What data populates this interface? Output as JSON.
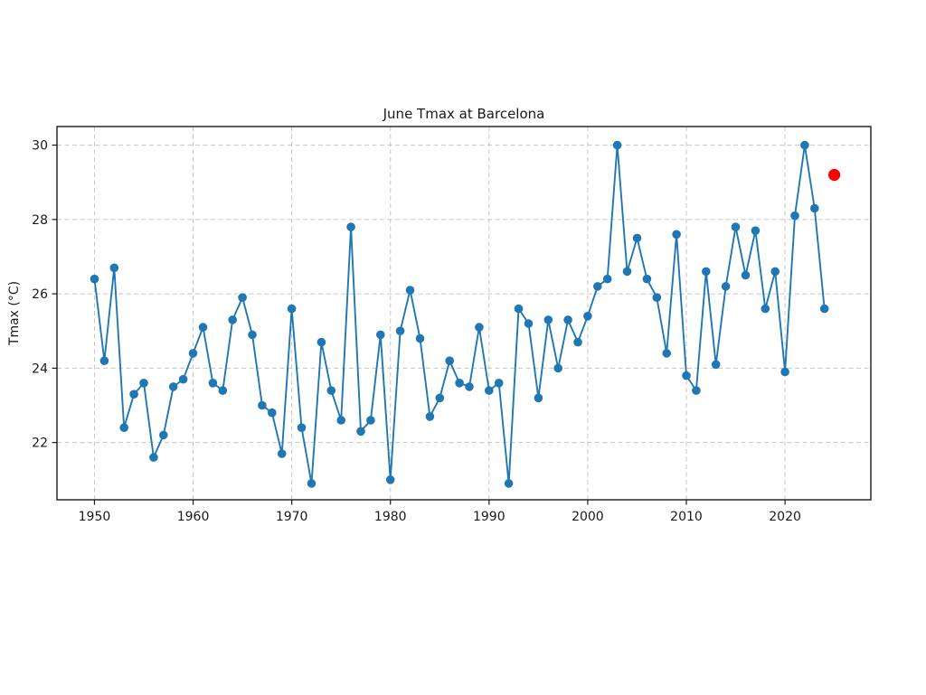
{
  "page": {
    "background": "#ffffff"
  },
  "chart_data": {
    "type": "line",
    "title": "June Tmax at Barcelona",
    "xlabel": "",
    "ylabel": "Tmax (°C)",
    "xlim": [
      1946.2,
      2028.7
    ],
    "ylim": [
      20.46,
      30.5
    ],
    "x_ticks": [
      1950,
      1960,
      1970,
      1980,
      1990,
      2000,
      2010,
      2020
    ],
    "y_ticks": [
      22,
      24,
      26,
      28,
      30
    ],
    "grid": true,
    "grid_style": "dashed",
    "legend_position": "none",
    "colors": {
      "axis": "#1a1a1a",
      "grid": "#c6c6c6",
      "background": "#ffffff"
    },
    "series": [
      {
        "name": "june-tmax-observed",
        "style": "line-with-markers",
        "color": "#1f77b4",
        "x": [
          1950,
          1951,
          1952,
          1953,
          1954,
          1955,
          1956,
          1957,
          1958,
          1959,
          1960,
          1961,
          1962,
          1963,
          1964,
          1965,
          1966,
          1967,
          1968,
          1969,
          1970,
          1971,
          1972,
          1973,
          1974,
          1975,
          1976,
          1977,
          1978,
          1979,
          1980,
          1981,
          1982,
          1983,
          1984,
          1985,
          1986,
          1987,
          1988,
          1989,
          1990,
          1991,
          1992,
          1993,
          1994,
          1995,
          1996,
          1997,
          1998,
          1999,
          2000,
          2001,
          2002,
          2003,
          2004,
          2005,
          2006,
          2007,
          2008,
          2009,
          2010,
          2011,
          2012,
          2013,
          2014,
          2015,
          2016,
          2017,
          2018,
          2019,
          2020,
          2021,
          2022,
          2023,
          2024
        ],
        "y": [
          26.4,
          24.2,
          26.7,
          22.4,
          23.3,
          23.6,
          21.6,
          22.2,
          23.5,
          23.7,
          24.4,
          25.1,
          23.6,
          23.4,
          25.3,
          25.9,
          24.9,
          23.0,
          22.8,
          21.7,
          25.6,
          22.4,
          20.9,
          24.7,
          23.4,
          22.6,
          27.8,
          22.3,
          22.6,
          24.9,
          21.0,
          25.0,
          26.1,
          24.8,
          22.7,
          23.2,
          24.2,
          23.6,
          23.5,
          25.1,
          23.4,
          23.6,
          20.9,
          25.6,
          25.2,
          23.2,
          25.3,
          24.0,
          25.3,
          24.7,
          25.4,
          26.2,
          26.4,
          30.0,
          26.6,
          27.5,
          26.4,
          25.9,
          24.4,
          27.6,
          23.8,
          23.4,
          26.6,
          24.1,
          26.2,
          27.8,
          26.5,
          27.7,
          25.6,
          26.6,
          23.9,
          28.1,
          30.0,
          28.3,
          25.6
        ]
      },
      {
        "name": "highlight-point",
        "style": "marker-only",
        "color": "#ff0000",
        "x": [
          2025
        ],
        "y": [
          29.2
        ]
      }
    ]
  }
}
